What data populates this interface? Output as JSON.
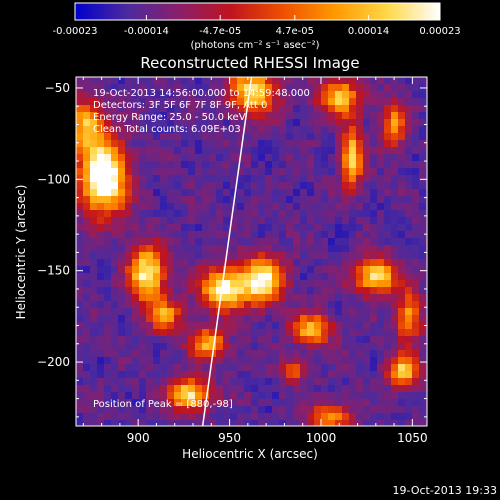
{
  "colorbar": {
    "tick_labels": [
      "-0.00023",
      "-0.00014",
      "-4.7e-05",
      "4.7e-05",
      "0.00014",
      "0.00023"
    ],
    "tick_values": [
      -0.00023,
      -0.00014,
      -4.7e-05,
      4.7e-05,
      0.00014,
      0.00023
    ],
    "range": [
      -0.00023,
      0.00023
    ],
    "units_label": "(photons cm⁻² s⁻¹ asec⁻²)",
    "palette": [
      "#0000cc",
      "#4b2a9e",
      "#8a1f6a",
      "#c0141e",
      "#f05000",
      "#ff9a00",
      "#ffd84a",
      "#ffffff"
    ]
  },
  "chart_data": {
    "type": "heatmap",
    "title": "Reconstructed RHESSI Image",
    "xlabel": "Heliocentric X (arcsec)",
    "ylabel": "Heliocentric Y (arcsec)",
    "xlim": [
      866,
      1058
    ],
    "ylim": [
      -235,
      -44
    ],
    "x_ticks": [
      900,
      950,
      1000,
      1050
    ],
    "x_tick_labels": [
      "900",
      "950",
      "1000",
      "1050"
    ],
    "y_ticks": [
      -50,
      -100,
      -150,
      -200
    ],
    "y_tick_labels": [
      "−50",
      "−100",
      "−150",
      "−200"
    ],
    "peak_position": [
      880,
      -98
    ],
    "limb_line": [
      [
        935,
        -237
      ],
      [
        962,
        -44
      ]
    ],
    "annotations": [
      "19-Oct-2013 14:56:00.000 to 14:59:48.000",
      "Detectors: 3F 5F 6F 7F 8F 9F, Att 0",
      "Energy Range: 25.0 - 50.0 keV",
      "Clean    Total counts: 6.09E+03"
    ],
    "peak_label": "Position of Peak = [880,-98]",
    "sources": [
      {
        "x": 881,
        "y": -99,
        "sx": 9,
        "sy": 14,
        "amp": 1.0
      },
      {
        "x": 872,
        "y": -70,
        "sx": 7,
        "sy": 10,
        "amp": 0.6
      },
      {
        "x": 963,
        "y": -52,
        "sx": 9,
        "sy": 9,
        "amp": 0.7
      },
      {
        "x": 1010,
        "y": -55,
        "sx": 8,
        "sy": 7,
        "amp": 0.65
      },
      {
        "x": 1017,
        "y": -88,
        "sx": 4,
        "sy": 12,
        "amp": 0.7
      },
      {
        "x": 905,
        "y": -152,
        "sx": 7,
        "sy": 11,
        "amp": 0.8
      },
      {
        "x": 915,
        "y": -175,
        "sx": 6,
        "sy": 6,
        "amp": 0.55
      },
      {
        "x": 947,
        "y": -160,
        "sx": 9,
        "sy": 8,
        "amp": 0.8
      },
      {
        "x": 968,
        "y": -155,
        "sx": 8,
        "sy": 9,
        "amp": 0.8
      },
      {
        "x": 938,
        "y": -190,
        "sx": 7,
        "sy": 6,
        "amp": 0.6
      },
      {
        "x": 928,
        "y": -218,
        "sx": 8,
        "sy": 6,
        "amp": 0.75
      },
      {
        "x": 1030,
        "y": -153,
        "sx": 8,
        "sy": 7,
        "amp": 0.75
      },
      {
        "x": 995,
        "y": -182,
        "sx": 8,
        "sy": 6,
        "amp": 0.6
      },
      {
        "x": 1048,
        "y": -175,
        "sx": 5,
        "sy": 10,
        "amp": 0.55
      },
      {
        "x": 1045,
        "y": -205,
        "sx": 6,
        "sy": 6,
        "amp": 0.65
      },
      {
        "x": 1005,
        "y": -230,
        "sx": 8,
        "sy": 5,
        "amp": 0.55
      },
      {
        "x": 1040,
        "y": -70,
        "sx": 5,
        "sy": 9,
        "amp": 0.5
      },
      {
        "x": 985,
        "y": -205,
        "sx": 5,
        "sy": 4,
        "amp": 0.45
      }
    ]
  },
  "footer": {
    "timestamp": "19-Oct-2013 19:33"
  }
}
